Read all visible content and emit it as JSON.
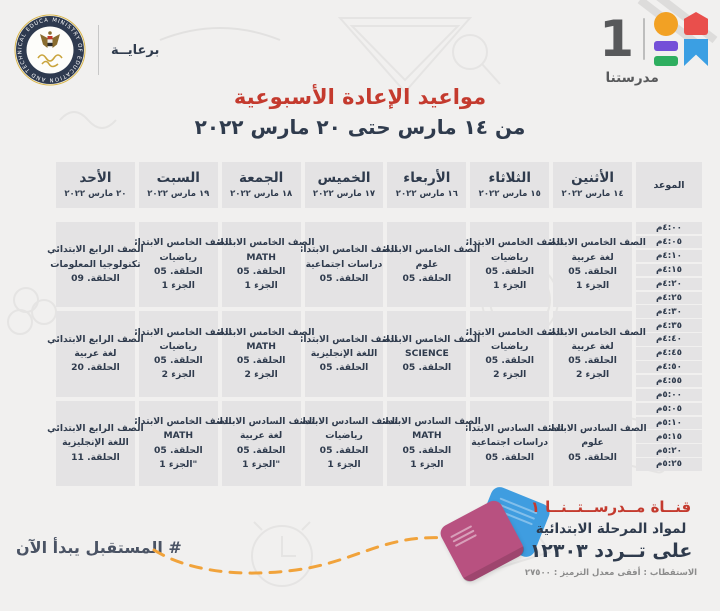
{
  "colors": {
    "bg": "#f1f0ef",
    "cell": "#e4e3e4",
    "navy": "#2f3b4d",
    "red": "#c43a2e",
    "slate": "#4a5364",
    "logo-gray": "#58595b",
    "orange": "#f2a124",
    "house": "#e94f4c",
    "purple": "#7450d8",
    "green": "#2eae5f",
    "blue": "#3b9fe3",
    "dash": "#f1a33b",
    "book-blue": "#3f9de0",
    "book-pink": "#b85180",
    "seal-navy": "#2e3a4f",
    "seal-gold": "#c9a43c"
  },
  "header": {
    "sponsor_label": "برعايــة",
    "seal_ring_text": "MINISTRY OF EDUCATION AND TECHNICAL EDUCATION",
    "channel": {
      "number": "1",
      "name": "مدرستنا"
    }
  },
  "title": "مواعيد الإعادة الأسبوعية",
  "subtitle": "من ١٤ مارس حتى ٢٠ مارس ٢٠٢٢",
  "table": {
    "time_header": "الموعد",
    "days": [
      {
        "name": "الأثنين",
        "date": "١٤ مارس ٢٠٢٢"
      },
      {
        "name": "الثلاثاء",
        "date": "١٥ مارس ٢٠٢٢"
      },
      {
        "name": "الأربعاء",
        "date": "١٦ مارس ٢٠٢٢"
      },
      {
        "name": "الخميس",
        "date": "١٧ مارس ٢٠٢٢"
      },
      {
        "name": "الجمعة",
        "date": "١٨ مارس ٢٠٢٢"
      },
      {
        "name": "السبت",
        "date": "١٩ مارس ٢٠٢٢"
      },
      {
        "name": "الأحد",
        "date": "٢٠ مارس ٢٠٢٢"
      }
    ],
    "times": [
      "٤:٠٠م",
      "٤:٠٥م",
      "٤:١٠م",
      "٤:١٥م",
      "٤:٢٠م",
      "٤:٢٥م",
      "٤:٣٠م",
      "٤:٣٥م",
      "٤:٤٠م",
      "٤:٤٥م",
      "٤:٥٠م",
      "٤:٥٥م",
      "٥:٠٠م",
      "٥:٠٥م",
      "٥:١٠م",
      "٥:١٥م",
      "٥:٢٠م",
      "٥:٢٥م"
    ],
    "blocks": [
      {
        "time_range": "٤:٠٠م - ٤:٢٥م",
        "cells": [
          [
            "الصف الخامس الابتدائي",
            "لغة عربية",
            "الحلقة. 05",
            "الجزء 1"
          ],
          [
            "الصف الخامس الابتدائي",
            "رياضيات",
            "الحلقة. 05",
            "الجزء 1"
          ],
          [
            "الصف الخامس الابتدائي",
            "علوم",
            "الحلقة. 05"
          ],
          [
            "الصف الخامس الابتدائي",
            "دراسات اجتماعية",
            "الحلقة. 05"
          ],
          [
            "الصف الخامس الابتدائي",
            "MATH",
            "الحلقة. 05",
            "الجزء 1"
          ],
          [
            "الصف الخامس الابتدائي",
            "رياضيات",
            "الحلقة. 05",
            "الجزء 1"
          ],
          [
            "الصف الرابع الابتدائي",
            "تكنولوجيا المعلومات",
            "الحلقة. 09"
          ]
        ]
      },
      {
        "time_range": "٤:٣٠م - ٤:٥٥م",
        "cells": [
          [
            "الصف الخامس الابتدائي",
            "لغة عربية",
            "الحلقة. 05",
            "الجزء 2"
          ],
          [
            "الصف الخامس الابتدائي",
            "رياضيات",
            "الحلقة. 05",
            "الجزء 2"
          ],
          [
            "الصف الخامس الابتدائي",
            "SCIENCE",
            "الحلقة. 05"
          ],
          [
            "الصف الخامس الابتدائي",
            "اللغة الإنجليزية",
            "الحلقة. 05"
          ],
          [
            "الصف الخامس الابتدائي",
            "MATH",
            "الحلقة. 05",
            "الجزء 2"
          ],
          [
            "الصف الخامس الابتدائي",
            "رياضيات",
            "الحلقة. 05",
            "الجزء 2"
          ],
          [
            "الصف الرابع الابتدائي",
            "لغة عربية",
            "الحلقة. 20"
          ]
        ]
      },
      {
        "time_range": "٥:٠٠م - ٥:٢٥م",
        "cells": [
          [
            "الصف السادس الابتدائي",
            "علوم",
            "الحلقة. 05"
          ],
          [
            "الصف السادس الابتدائي",
            "دراسات اجتماعية",
            "الحلقة. 05"
          ],
          [
            "الصف السادس الابتدائي",
            "MATH",
            "الحلقة. 05",
            "الجزء 1"
          ],
          [
            "الصف السادس الابتدائي",
            "رياضيات",
            "الحلقة. 05",
            "الجزء 1"
          ],
          [
            "الصف السادس الابتدائي",
            "لغة عربية",
            "الحلقة. 05",
            "\"الجزء 1"
          ],
          [
            "الصف الخامس الابتدائي",
            "MATH",
            "الحلقة. 05",
            "\"الجزء 1"
          ],
          [
            "الصف الرابع الابتدائي",
            "اللغة الإنجليزية",
            "الحلقة. 11"
          ]
        ]
      }
    ]
  },
  "footer": {
    "hashtag": "# المستقبل يبدأ الآن",
    "channel_line1": "قنــاة مــدرســتــنــا ١",
    "channel_line2": "لمواد المرحلة الابتدائية",
    "channel_line3": "على تــردد ١٢٣٠٣",
    "tech_info": "الاستقطاب : أفقى   معدل الترميز : ٢٧٥٠٠"
  }
}
